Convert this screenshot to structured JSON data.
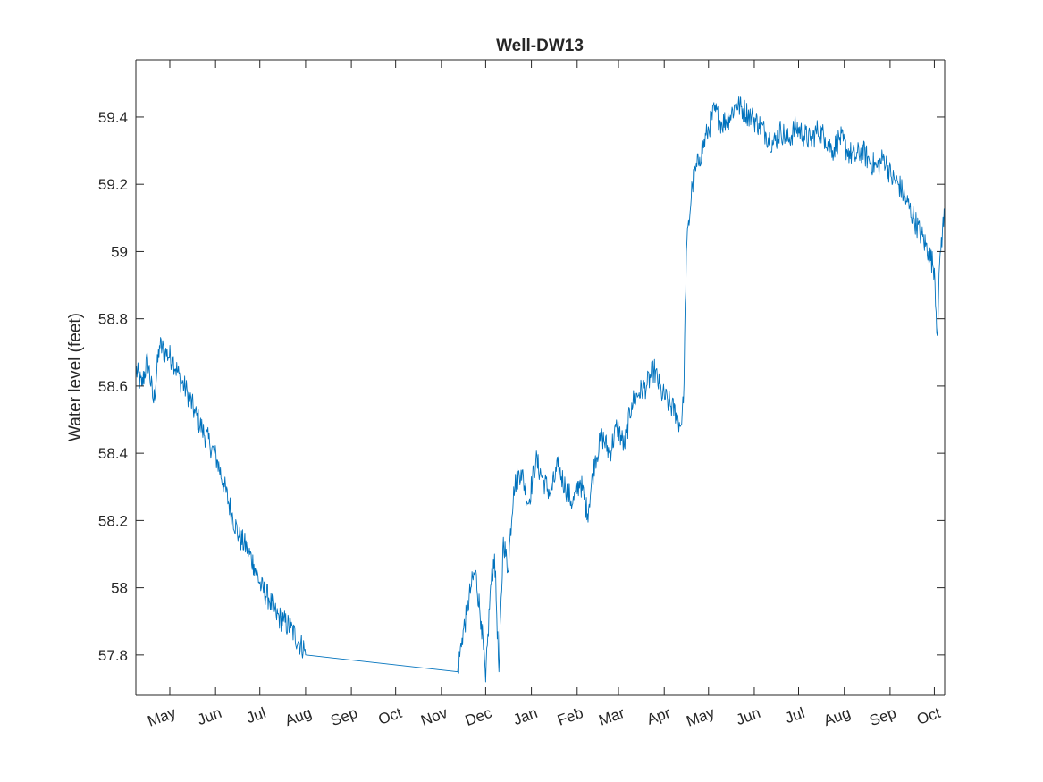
{
  "chart_data": {
    "type": "line",
    "title": "Well-DW13",
    "xlabel": "",
    "ylabel": "Water level (feet)",
    "x_axis": "date",
    "xlim": [
      "2021-04-08",
      "2022-10-08"
    ],
    "ylim": [
      57.68,
      59.57
    ],
    "grid": false,
    "legend": "none",
    "y_ticks": [
      57.8,
      58,
      58.2,
      58.4,
      58.6,
      58.8,
      59,
      59.2,
      59.4
    ],
    "y_tick_labels": [
      "57.8",
      "58",
      "58.2",
      "58.4",
      "58.6",
      "58.8",
      "59",
      "59.2",
      "59.4"
    ],
    "x_ticks": [
      "2021-05-01",
      "2021-06-01",
      "2021-07-01",
      "2021-08-01",
      "2021-09-01",
      "2021-10-01",
      "2021-11-01",
      "2021-12-01",
      "2022-01-01",
      "2022-02-01",
      "2022-03-01",
      "2022-04-01",
      "2022-05-01",
      "2022-06-01",
      "2022-07-01",
      "2022-08-01",
      "2022-09-01",
      "2022-10-01"
    ],
    "x_tick_labels": [
      "May",
      "Jun",
      "Jul",
      "Aug",
      "Sep",
      "Oct",
      "Nov",
      "Dec",
      "Jan",
      "Feb",
      "Mar",
      "Apr",
      "May",
      "Jun",
      "Jul",
      "Aug",
      "Sep",
      "Oct"
    ],
    "series": [
      {
        "name": "",
        "color": "#0072BD",
        "x": [
          "2021-04-08",
          "2021-04-12",
          "2021-04-16",
          "2021-04-20",
          "2021-04-24",
          "2021-04-28",
          "2021-05-03",
          "2021-05-08",
          "2021-05-13",
          "2021-05-18",
          "2021-05-23",
          "2021-05-28",
          "2021-06-02",
          "2021-06-07",
          "2021-06-12",
          "2021-06-17",
          "2021-06-22",
          "2021-06-27",
          "2021-07-02",
          "2021-07-07",
          "2021-07-12",
          "2021-07-17",
          "2021-07-22",
          "2021-07-27",
          "2021-07-31",
          "2021-08-01",
          "2021-11-12",
          "2021-11-15",
          "2021-11-18",
          "2021-11-21",
          "2021-11-24",
          "2021-11-28",
          "2021-12-01",
          "2021-12-04",
          "2021-12-07",
          "2021-12-10",
          "2021-12-13",
          "2021-12-16",
          "2021-12-20",
          "2021-12-25",
          "2021-12-30",
          "2022-01-04",
          "2022-01-09",
          "2022-01-14",
          "2022-01-19",
          "2022-01-24",
          "2022-01-29",
          "2022-02-03",
          "2022-02-08",
          "2022-02-13",
          "2022-02-18",
          "2022-02-23",
          "2022-02-28",
          "2022-03-05",
          "2022-03-10",
          "2022-03-15",
          "2022-03-20",
          "2022-03-25",
          "2022-03-30",
          "2022-04-04",
          "2022-04-09",
          "2022-04-12",
          "2022-04-14",
          "2022-04-16",
          "2022-04-20",
          "2022-04-25",
          "2022-04-30",
          "2022-05-05",
          "2022-05-10",
          "2022-05-15",
          "2022-05-20",
          "2022-05-25",
          "2022-05-30",
          "2022-06-04",
          "2022-06-09",
          "2022-06-14",
          "2022-06-19",
          "2022-06-24",
          "2022-06-29",
          "2022-07-04",
          "2022-07-09",
          "2022-07-14",
          "2022-07-19",
          "2022-07-24",
          "2022-07-29",
          "2022-08-03",
          "2022-08-08",
          "2022-08-13",
          "2022-08-18",
          "2022-08-23",
          "2022-08-28",
          "2022-09-02",
          "2022-09-07",
          "2022-09-12",
          "2022-09-17",
          "2022-09-22",
          "2022-09-27",
          "2022-10-01",
          "2022-10-03",
          "2022-10-05",
          "2022-10-08"
        ],
        "y": [
          58.65,
          58.6,
          58.68,
          58.55,
          58.72,
          58.7,
          58.68,
          58.62,
          58.58,
          58.52,
          58.47,
          58.43,
          58.38,
          58.3,
          58.22,
          58.15,
          58.12,
          58.07,
          58.0,
          57.97,
          57.92,
          57.9,
          57.88,
          57.84,
          57.82,
          57.8,
          57.75,
          57.85,
          57.92,
          58.0,
          58.05,
          57.9,
          57.72,
          57.98,
          58.1,
          57.75,
          58.15,
          58.05,
          58.3,
          58.35,
          58.25,
          58.38,
          58.32,
          58.28,
          58.36,
          58.3,
          58.25,
          58.32,
          58.22,
          58.38,
          58.45,
          58.4,
          58.48,
          58.42,
          58.55,
          58.58,
          58.6,
          58.65,
          58.58,
          58.55,
          58.52,
          58.48,
          58.55,
          59.0,
          59.2,
          59.28,
          59.35,
          59.42,
          59.38,
          59.4,
          59.44,
          59.42,
          59.4,
          59.38,
          59.35,
          59.32,
          59.36,
          59.33,
          59.37,
          59.35,
          59.33,
          59.36,
          59.34,
          59.3,
          59.34,
          59.3,
          59.28,
          59.3,
          59.27,
          59.25,
          59.28,
          59.22,
          59.2,
          59.15,
          59.1,
          59.05,
          59.0,
          58.95,
          58.75,
          59.0,
          59.12
        ]
      }
    ]
  }
}
